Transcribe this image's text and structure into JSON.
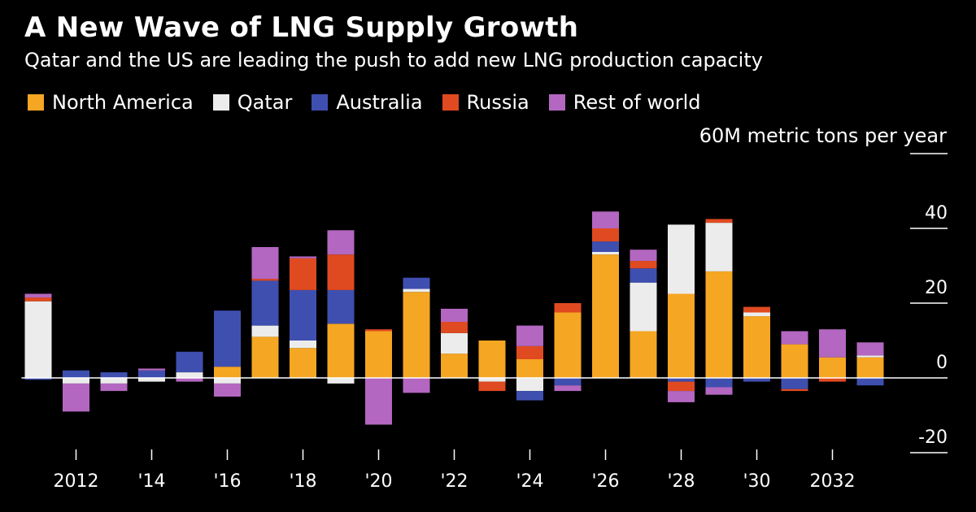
{
  "header": {
    "title": "A New Wave of LNG Supply Growth",
    "subtitle": "Qatar and the US are leading the push to add new LNG production capacity",
    "unit": "60M metric tons per year"
  },
  "chart_data": {
    "type": "bar",
    "stacked": true,
    "title": "A New Wave of LNG Supply Growth",
    "subtitle": "Qatar and the US are leading the push to add new LNG production capacity",
    "ylabel": "60M metric tons per year",
    "xlabel": "",
    "ylim": [
      -20,
      60
    ],
    "y_ticks": [
      40,
      20,
      0,
      -20
    ],
    "y_tick_labels": [
      "40",
      "20",
      "0",
      "-20"
    ],
    "y_axis_side": "right",
    "legend_position": "top-left",
    "categories": [
      2011,
      2012,
      2013,
      2014,
      2015,
      2016,
      2017,
      2018,
      2019,
      2020,
      2021,
      2022,
      2023,
      2024,
      2025,
      2026,
      2027,
      2028,
      2029,
      2030,
      2031,
      2032,
      2033
    ],
    "x_tick_labels": [
      {
        "year": 2012,
        "label": "2012"
      },
      {
        "year": 2014,
        "label": "'14"
      },
      {
        "year": 2016,
        "label": "'16"
      },
      {
        "year": 2018,
        "label": "'18"
      },
      {
        "year": 2020,
        "label": "'20"
      },
      {
        "year": 2022,
        "label": "'22"
      },
      {
        "year": 2024,
        "label": "'24"
      },
      {
        "year": 2026,
        "label": "'26"
      },
      {
        "year": 2028,
        "label": "'28"
      },
      {
        "year": 2030,
        "label": "'30"
      },
      {
        "year": 2032,
        "label": "2032"
      }
    ],
    "series": [
      {
        "name": "North America",
        "color": "#f5a623",
        "values": [
          0,
          0,
          0,
          0,
          0,
          3,
          11,
          8,
          14.5,
          12.5,
          23,
          6.5,
          10,
          5,
          17.5,
          33,
          12.5,
          22.5,
          28.5,
          16.5,
          9,
          5.5,
          5.5
        ]
      },
      {
        "name": "Qatar",
        "color": "#ececec",
        "values": [
          20.5,
          -1.5,
          -1.5,
          -1,
          1.5,
          -1.5,
          3,
          2,
          -1.5,
          0,
          0.8,
          5.5,
          -1,
          -3.5,
          0,
          0.7,
          13,
          18.5,
          13,
          1,
          0,
          0,
          0.5
        ]
      },
      {
        "name": "Australia",
        "color": "#3f4fb0",
        "values": [
          -0.5,
          2,
          1.5,
          2,
          5.5,
          15,
          12,
          13.5,
          9,
          0,
          3,
          0,
          0,
          -2.5,
          -2,
          2.8,
          3.8,
          -1,
          -2.5,
          -1,
          -3,
          0,
          -2
        ]
      },
      {
        "name": "Russia",
        "color": "#e04a20",
        "values": [
          1,
          0,
          0,
          0,
          0,
          0,
          0.5,
          8.5,
          9.5,
          0.5,
          0,
          3,
          -2.5,
          3.5,
          2.5,
          3.5,
          2,
          -2.5,
          1,
          1.5,
          -0.5,
          -1,
          0
        ]
      },
      {
        "name": "Rest of world",
        "color": "#b367c0",
        "values": [
          1,
          -7.5,
          -2,
          0.5,
          -1,
          -3.5,
          8.5,
          0.5,
          6.5,
          -12.5,
          -4,
          3.5,
          0,
          5.5,
          -1.5,
          4.5,
          3,
          -3,
          -2,
          0,
          3.5,
          7.5,
          3.5
        ]
      }
    ]
  }
}
